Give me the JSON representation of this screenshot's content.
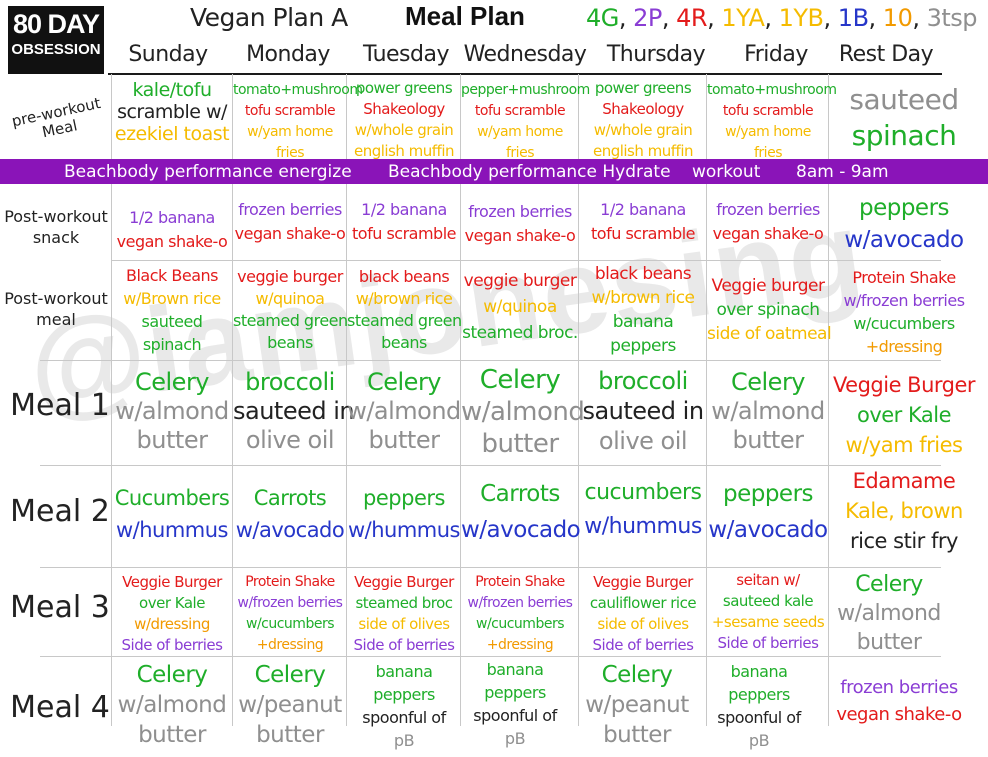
{
  "header": {
    "logo_line1": "80 DAY",
    "logo_line2": "OBSESSION",
    "plan_title": "Vegan Plan A",
    "meal_plan_title": "Meal Plan",
    "portions": [
      {
        "text": "4G",
        "color": "#1fae2a"
      },
      {
        "text": ", ",
        "color": "#222222"
      },
      {
        "text": "2P",
        "color": "#8a3dd4"
      },
      {
        "text": ", ",
        "color": "#222222"
      },
      {
        "text": "4R",
        "color": "#e31b1b"
      },
      {
        "text": ", ",
        "color": "#222222"
      },
      {
        "text": "1YA",
        "color": "#f5bb00"
      },
      {
        "text": ", ",
        "color": "#222222"
      },
      {
        "text": "1YB",
        "color": "#f5bb00"
      },
      {
        "text": ", ",
        "color": "#222222"
      },
      {
        "text": "1B",
        "color": "#2636c9"
      },
      {
        "text": ", ",
        "color": "#222222"
      },
      {
        "text": "10",
        "color": "#f29a00"
      },
      {
        "text": ", ",
        "color": "#222222"
      },
      {
        "text": "3tsp",
        "color": "#8f8f8f"
      }
    ],
    "days": [
      "Sunday",
      "Monday",
      "Tuesday",
      "Wednesday",
      "Thursday",
      "Friday",
      "Rest Day"
    ]
  },
  "watermark": "@iamjonesing",
  "banner": {
    "energize": "Beachbody performance energize",
    "hydrate": "Beachbody performance Hydrate",
    "workout": "workout",
    "time": "8am - 9am",
    "color": "#8a14b8"
  },
  "row_labels": {
    "pre_workout": [
      "pre-workout",
      "Meal"
    ],
    "post_snack": [
      "Post-workout",
      "snack"
    ],
    "post_meal": [
      "Post-workout",
      "meal"
    ],
    "meal1": "Meal 1",
    "meal2": "Meal 2",
    "meal3": "Meal 3",
    "meal4": "Meal 4"
  },
  "cells": {
    "pre_workout": {
      "sunday": [
        "kale/tofu",
        "scramble w/",
        "ezekiel toast"
      ],
      "monday": [
        "tomato+mushroom",
        "tofu scramble",
        "w/yam home",
        "fries"
      ],
      "tuesday": [
        "power greens",
        "Shakeology",
        "w/whole grain",
        "english muffin"
      ],
      "wednesday": [
        "pepper+mushroom",
        "tofu scramble",
        "w/yam home",
        "fries"
      ],
      "thursday": [
        "power greens",
        "Shakeology",
        "w/whole grain",
        "english muffin"
      ],
      "friday": [
        "tomato+mushroom",
        "tofu scramble",
        "w/yam home",
        "fries"
      ],
      "rest": [
        "sauteed",
        "spinach"
      ]
    },
    "post_snack": {
      "sunday": [
        "1/2 banana",
        "vegan shake-o"
      ],
      "monday": [
        "frozen berries",
        "vegan shake-o"
      ],
      "tuesday": [
        "1/2 banana",
        "tofu scramble"
      ],
      "wednesday": [
        "frozen berries",
        "vegan shake-o"
      ],
      "thursday": [
        "1/2 banana",
        "tofu scramble"
      ],
      "friday": [
        "frozen berries",
        "vegan shake-o"
      ],
      "rest": [
        "peppers",
        "w/avocado"
      ]
    },
    "post_meal": {
      "sunday": [
        "Black Beans",
        "w/Brown rice",
        "sauteed",
        "spinach"
      ],
      "monday": [
        "veggie burger",
        "w/quinoa",
        "steamed green",
        "beans"
      ],
      "tuesday": [
        "black beans",
        "w/brown rice",
        "steamed green",
        "beans"
      ],
      "wednesday": [
        "veggie burger",
        "w/quinoa",
        "steamed broc."
      ],
      "thursday": [
        "black beans",
        "w/brown rice",
        "banana",
        "peppers"
      ],
      "friday": [
        "Veggie burger",
        "over spinach",
        "side of oatmeal"
      ],
      "rest": [
        "Protein Shake",
        "w/frozen berries",
        "w/cucumbers",
        "+dressing"
      ]
    },
    "meal1": {
      "sunday": [
        "Celery",
        "w/almond",
        "butter"
      ],
      "monday": [
        "broccoli",
        "sauteed in",
        "olive oil"
      ],
      "tuesday": [
        "Celery",
        "w/almond",
        "butter"
      ],
      "wednesday": [
        "Celery",
        "w/almond",
        "butter"
      ],
      "thursday": [
        "broccoli",
        "sauteed in",
        "olive oil"
      ],
      "friday": [
        "Celery",
        "w/almond",
        "butter"
      ],
      "rest": [
        "Veggie Burger",
        "over Kale",
        "w/yam fries"
      ]
    },
    "meal2": {
      "sunday": [
        "Cucumbers",
        "w/hummus"
      ],
      "monday": [
        "Carrots",
        "w/avocado"
      ],
      "tuesday": [
        "peppers",
        "w/hummus"
      ],
      "wednesday": [
        "Carrots",
        "w/avocado"
      ],
      "thursday": [
        "cucumbers",
        "w/hummus"
      ],
      "friday": [
        "peppers",
        "w/avocado"
      ],
      "rest": [
        "Edamame",
        "Kale, brown",
        "rice stir fry"
      ]
    },
    "meal3": {
      "sunday": [
        "Veggie Burger",
        "over Kale",
        "w/dressing",
        "Side of berries"
      ],
      "monday": [
        "Protein Shake",
        "w/frozen berries",
        "w/cucumbers",
        "+dressing"
      ],
      "tuesday": [
        "Veggie Burger",
        "steamed broc",
        "side of olives",
        "Side of berries"
      ],
      "wednesday": [
        "Protein Shake",
        "w/frozen berries",
        "w/cucumbers",
        "+dressing"
      ],
      "thursday": [
        "Veggie Burger",
        "cauliflower rice",
        "side of olives",
        "Side of berries"
      ],
      "friday": [
        "seitan w/",
        "sauteed kale",
        "+sesame seeds",
        "Side of berries"
      ],
      "rest": [
        "Celery",
        "w/almond",
        "butter"
      ]
    },
    "meal4": {
      "sunday": [
        "Celery",
        "w/almond",
        "butter"
      ],
      "monday": [
        "Celery",
        "w/peanut",
        "butter"
      ],
      "tuesday": [
        "banana",
        "peppers",
        "spoonful of",
        "pB"
      ],
      "wednesday": [
        "banana",
        "peppers",
        "spoonful of",
        "pB"
      ],
      "thursday": [
        "Celery",
        "w/peanut",
        "butter"
      ],
      "friday": [
        "banana",
        "peppers",
        "spoonful of",
        "pB"
      ],
      "rest": [
        "frozen berries",
        "vegan shake-o"
      ]
    }
  }
}
